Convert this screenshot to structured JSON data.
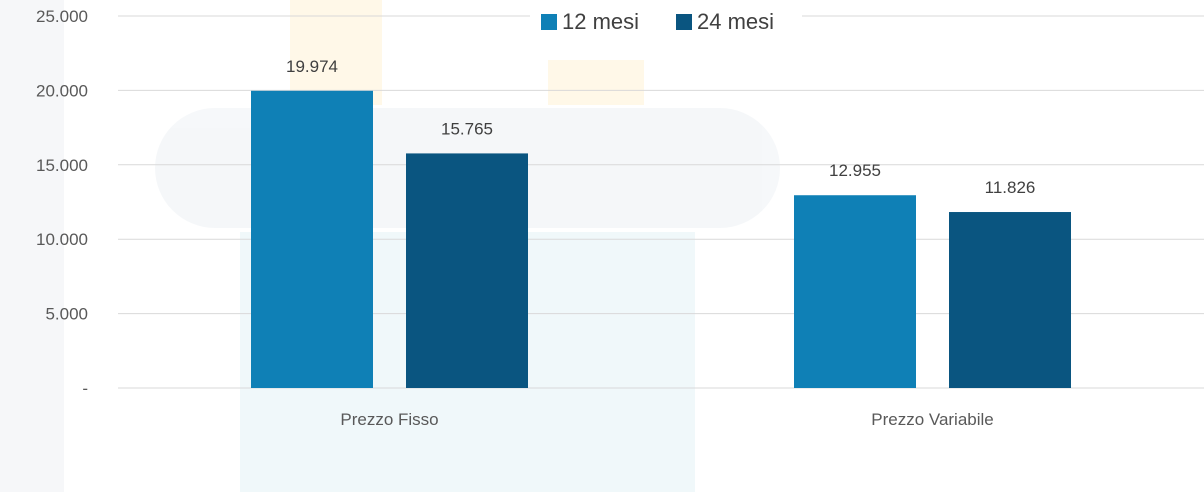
{
  "chart_data": {
    "type": "bar",
    "categories": [
      "Prezzo Fisso",
      "Prezzo Variabile"
    ],
    "series": [
      {
        "name": "12 mesi",
        "values": [
          19974,
          12955
        ],
        "labels": [
          "19.974",
          "12.955"
        ],
        "color": "#0F80B6"
      },
      {
        "name": "24 mesi",
        "values": [
          15765,
          11826
        ],
        "labels": [
          "15.765",
          "11.826"
        ],
        "color": "#0A5580"
      }
    ],
    "ylim": [
      0,
      25000
    ],
    "yticks": [
      0,
      5000,
      10000,
      15000,
      20000,
      25000
    ],
    "ytick_labels": [
      "-",
      "5.000",
      "10.000",
      "15.000",
      "20.000",
      "25.000"
    ],
    "grid": true,
    "legend_position": "top-center",
    "title": "",
    "xlabel": "",
    "ylabel": ""
  }
}
